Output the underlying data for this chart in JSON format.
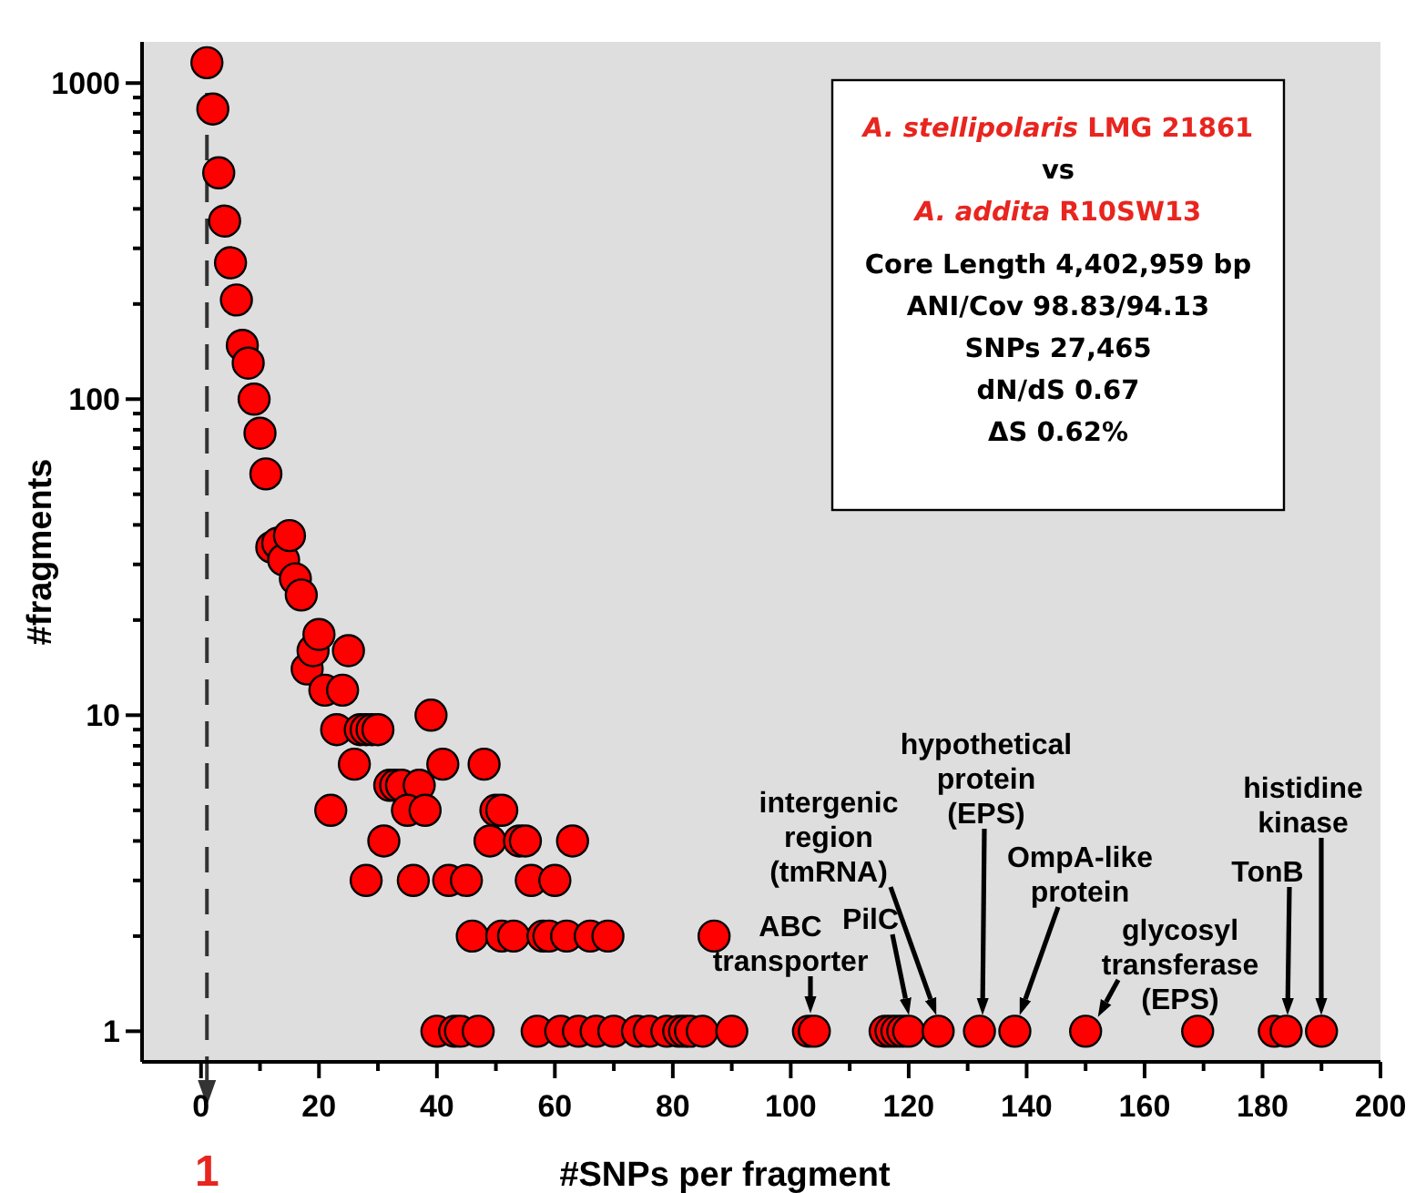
{
  "chart_data": {
    "type": "scatter",
    "xlabel": "#SNPs per fragment",
    "ylabel": "#fragments",
    "log": "y",
    "marker": "circle",
    "grid": false,
    "xlim": [
      -10,
      200
    ],
    "xticks": [
      0,
      {
        "value": 10,
        "label": null
      },
      20,
      {
        "value": 30,
        "label": null
      },
      40,
      {
        "value": 50,
        "label": null
      },
      60,
      {
        "value": 70,
        "label": null
      },
      80,
      {
        "value": 90,
        "label": null
      },
      100,
      {
        "value": 110,
        "label": null
      },
      120,
      {
        "value": 130,
        "label": null
      },
      140,
      {
        "value": 150,
        "label": null
      },
      160,
      {
        "value": 170,
        "label": null
      },
      180,
      {
        "value": 190,
        "label": null
      },
      200
    ],
    "ylim": [
      0.8,
      1350
    ],
    "yticks": [
      1,
      {
        "value": 2,
        "label": null
      },
      {
        "value": 3,
        "label": null
      },
      {
        "value": 4,
        "label": null
      },
      {
        "value": 5,
        "label": null
      },
      {
        "value": 6,
        "label": null
      },
      {
        "value": 7,
        "label": null
      },
      {
        "value": 8,
        "label": null
      },
      {
        "value": 9,
        "label": null
      },
      10,
      {
        "value": 20,
        "label": null
      },
      {
        "value": 30,
        "label": null
      },
      {
        "value": 40,
        "label": null
      },
      {
        "value": 50,
        "label": null
      },
      {
        "value": 60,
        "label": null
      },
      {
        "value": 70,
        "label": null
      },
      {
        "value": 80,
        "label": null
      },
      {
        "value": 90,
        "label": null
      },
      100,
      {
        "value": 200,
        "label": null
      },
      {
        "value": 300,
        "label": null
      },
      {
        "value": 400,
        "label": null
      },
      {
        "value": 500,
        "label": null
      },
      {
        "value": 600,
        "label": null
      },
      {
        "value": 700,
        "label": null
      },
      {
        "value": 800,
        "label": null
      },
      {
        "value": 900,
        "label": null
      },
      1000
    ],
    "series": [
      {
        "color": "#ff0000",
        "x": [
          1,
          2,
          3,
          4,
          5,
          6,
          7,
          8,
          9,
          10,
          11,
          12,
          13,
          14,
          15,
          16,
          17,
          18,
          19,
          20,
          21,
          22,
          23,
          24,
          25,
          26,
          27,
          28,
          29,
          30,
          28,
          31,
          32,
          33,
          34,
          37,
          35,
          38,
          36,
          39,
          40,
          41,
          42,
          43,
          44,
          45,
          46,
          47,
          48,
          49,
          50,
          51,
          51,
          53,
          54,
          55,
          56,
          57,
          58,
          59,
          60,
          61,
          62,
          63,
          64,
          66,
          67,
          69,
          70,
          74,
          76,
          79,
          81,
          82,
          83,
          85,
          87,
          90,
          103,
          104,
          116,
          117,
          118,
          119,
          120,
          125,
          132,
          138,
          150,
          169,
          182,
          184,
          190
        ],
        "values": [
          1160,
          828,
          520,
          366,
          270,
          206,
          148,
          130,
          100,
          78,
          58,
          34,
          35,
          31,
          37,
          27,
          24,
          14,
          16,
          18,
          12,
          5,
          9,
          12,
          16,
          7,
          9,
          9,
          9,
          9,
          3,
          4,
          6,
          6,
          6,
          6,
          5,
          5,
          3,
          10,
          1,
          7,
          3,
          1,
          1,
          3,
          2,
          1,
          7,
          4,
          5,
          5,
          2,
          2,
          4,
          4,
          3,
          1,
          2,
          2,
          3,
          1,
          2,
          4,
          1,
          2,
          1,
          2,
          1,
          1,
          1,
          1,
          1,
          1,
          1,
          1,
          2,
          1,
          1,
          1,
          1,
          1,
          1,
          1,
          1,
          1,
          1,
          1,
          1,
          1,
          1,
          1,
          1
        ]
      }
    ],
    "ref_lines": [
      {
        "axis": "x",
        "value": 1,
        "label": "1",
        "color": "#333333",
        "line_style": "dashed"
      }
    ],
    "annotations": [
      "A. stellipolaris LMG 21861",
      "vs",
      "A. addita R10SW13",
      "Core Length 4,402,959 bp",
      "ANI/Cov 98.83/94.13",
      "SNPs 27,465",
      "dN/dS 0.67",
      "ΔS 0.62%",
      "ABC transporter",
      "PilC",
      "intergenic region (tmRNA)",
      "hypothetical protein (EPS)",
      "OmpA-like protein",
      "glycosyl transferase (EPS)",
      "TonB",
      "histidine kinase"
    ]
  }
}
